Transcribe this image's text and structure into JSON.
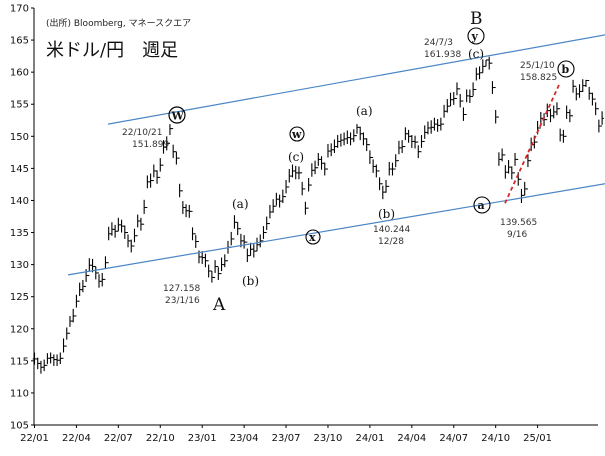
{
  "chart_data": {
    "type": "candlestick",
    "source": "(出所) Bloomberg, マネースクエア",
    "title": "米ドル/円　週足",
    "xlabel": "",
    "ylabel": "",
    "ylim": [
      105,
      170
    ],
    "ytick_labels": [
      "105",
      "110",
      "115",
      "120",
      "125",
      "130",
      "135",
      "140",
      "145",
      "150",
      "155",
      "160",
      "165",
      "170"
    ],
    "xtick_labels": [
      "22/01",
      "22/04",
      "22/07",
      "22/10",
      "23/01",
      "23/04",
      "23/07",
      "23/10",
      "24/01",
      "24/04",
      "24/07",
      "24/10",
      "25/01"
    ],
    "grid": false,
    "legend": "none",
    "colors": {
      "candles": "#000000",
      "channel": "#4a86c5",
      "trend": "#d62728",
      "axis": "#000000"
    },
    "series": [
      {
        "close": [
          115.3,
          114.6,
          114.0,
          114.3,
          115.4,
          115.5,
          115.2,
          115.1,
          115.4,
          117.3,
          119.3,
          121.2,
          122.0,
          124.3,
          126.1,
          126.6,
          128.3,
          129.9,
          129.7,
          128.7,
          127.4,
          127.7,
          130.3,
          134.8,
          135.5,
          135.2,
          136.2,
          136.0,
          135.0,
          133.7,
          132.9,
          134.5,
          136.8,
          136.3,
          138.9,
          142.9,
          143.1,
          144.6,
          143.6,
          145.5,
          148.3,
          148.9,
          151.2,
          147.6,
          146.6,
          141.5,
          138.9,
          138.4,
          138.3,
          134.8,
          133.6,
          131.2,
          131.1,
          130.6,
          129.0,
          128.0,
          129.7,
          128.6,
          130.0,
          130.6,
          132.7,
          134.0,
          136.6,
          135.6,
          133.7,
          133.5,
          131.4,
          132.4,
          132.1,
          133.1,
          133.7,
          135.0,
          136.4,
          138.2,
          139.1,
          140.2,
          139.9,
          140.6,
          142.1,
          143.8,
          144.6,
          144.3,
          144.3,
          141.8,
          138.8,
          142.4,
          144.7,
          145.1,
          146.4,
          145.8,
          144.9,
          147.7,
          147.9,
          148.4,
          149.2,
          149.4,
          149.6,
          149.8,
          149.6,
          150.1,
          151.4,
          150.4,
          149.6,
          148.7,
          146.7,
          145.3,
          144.6,
          142.6,
          141.3,
          142.2,
          144.9,
          144.9,
          146.2,
          148.2,
          148.4,
          150.4,
          150.0,
          149.2,
          149.1,
          147.6,
          149.2,
          150.6,
          151.3,
          151.4,
          151.9,
          151.7,
          151.9,
          153.9,
          154.7,
          155.7,
          155.9,
          157.4,
          155.5,
          153.4,
          156.3,
          156.2,
          157.3,
          159.7,
          159.9,
          160.9,
          161.9,
          161.4,
          157.6,
          153.0,
          146.4,
          147.1,
          144.4,
          145.2,
          144.3,
          146.4,
          143.3,
          140.8,
          141.8,
          146.2,
          148.7,
          149.1,
          151.3,
          152.8,
          152.6,
          154.0,
          153.2,
          153.8,
          154.3,
          150.2,
          150.0,
          153.7,
          153.2,
          157.8,
          156.6,
          157.0,
          157.9,
          158.7,
          156.7,
          155.8,
          154.3,
          151.6,
          152.8
        ],
        "high": [
          116.3,
          115.5,
          115.0,
          115.2,
          116.2,
          116.3,
          116.0,
          116.0,
          116.3,
          118.5,
          120.2,
          122.0,
          123.1,
          125.3,
          127.2,
          127.6,
          129.3,
          131.0,
          130.9,
          129.7,
          128.5,
          128.7,
          131.3,
          135.9,
          136.6,
          136.2,
          137.3,
          137.0,
          136.1,
          134.7,
          133.9,
          135.6,
          137.8,
          137.3,
          140.1,
          143.9,
          144.2,
          145.6,
          144.7,
          146.6,
          149.4,
          150.0,
          151.9,
          148.7,
          147.6,
          142.6,
          139.9,
          139.4,
          139.3,
          135.8,
          134.6,
          132.2,
          132.1,
          131.7,
          130.0,
          129.0,
          130.7,
          129.6,
          131.1,
          131.6,
          133.7,
          135.1,
          137.7,
          136.6,
          134.8,
          134.6,
          132.5,
          133.4,
          133.2,
          134.2,
          134.7,
          136.0,
          137.5,
          139.3,
          140.2,
          141.2,
          140.9,
          141.7,
          143.2,
          144.9,
          145.6,
          145.4,
          145.3,
          142.9,
          139.8,
          143.5,
          145.8,
          146.2,
          147.4,
          146.9,
          145.9,
          148.8,
          148.9,
          149.5,
          150.2,
          150.4,
          150.6,
          150.9,
          150.6,
          151.1,
          151.9,
          151.5,
          150.6,
          149.7,
          147.8,
          146.4,
          145.6,
          143.6,
          142.3,
          143.2,
          146.0,
          145.9,
          147.2,
          149.3,
          149.4,
          151.4,
          151.0,
          150.2,
          150.1,
          148.6,
          150.2,
          151.7,
          152.3,
          152.5,
          152.9,
          152.7,
          152.9,
          154.9,
          155.8,
          156.8,
          156.9,
          158.4,
          156.6,
          154.5,
          157.3,
          157.3,
          158.4,
          160.7,
          160.9,
          162.0,
          161.9,
          162.4,
          158.6,
          154.1,
          147.5,
          148.1,
          145.5,
          146.3,
          145.3,
          147.4,
          144.4,
          141.8,
          142.9,
          147.2,
          149.8,
          150.1,
          152.4,
          153.8,
          153.6,
          155.1,
          154.3,
          154.8,
          155.3,
          151.2,
          151.0,
          154.8,
          154.2,
          158.8,
          157.6,
          158.1,
          158.9,
          158.8,
          157.7,
          156.8,
          155.3,
          152.6,
          153.9
        ],
        "low": [
          114.4,
          113.7,
          113.0,
          113.4,
          114.5,
          114.6,
          114.2,
          114.2,
          114.5,
          116.3,
          118.3,
          120.3,
          121.0,
          123.3,
          125.1,
          125.7,
          127.3,
          128.9,
          128.8,
          127.7,
          126.4,
          126.6,
          129.3,
          133.8,
          134.5,
          134.2,
          135.2,
          135.0,
          134.0,
          132.7,
          131.9,
          133.5,
          135.8,
          135.3,
          137.9,
          141.9,
          142.0,
          143.6,
          142.6,
          144.5,
          147.3,
          147.8,
          150.2,
          146.6,
          145.6,
          140.5,
          137.9,
          137.4,
          137.3,
          133.8,
          132.6,
          130.2,
          130.1,
          129.6,
          128.0,
          127.2,
          128.7,
          127.6,
          129.0,
          129.6,
          131.7,
          133.0,
          135.6,
          134.6,
          132.7,
          132.5,
          130.4,
          131.4,
          131.1,
          132.1,
          132.7,
          134.0,
          135.4,
          137.2,
          138.1,
          139.2,
          138.9,
          139.6,
          141.1,
          142.8,
          143.6,
          143.3,
          143.3,
          140.8,
          137.8,
          141.4,
          143.7,
          144.1,
          145.4,
          144.8,
          143.9,
          146.7,
          146.9,
          147.4,
          148.2,
          148.4,
          148.6,
          148.8,
          148.6,
          149.1,
          150.4,
          149.4,
          148.6,
          147.7,
          145.7,
          144.3,
          143.6,
          141.6,
          140.2,
          141.2,
          143.9,
          143.9,
          145.2,
          147.2,
          147.4,
          149.4,
          149.0,
          148.2,
          148.1,
          146.6,
          148.2,
          149.6,
          150.3,
          150.4,
          150.9,
          150.7,
          150.9,
          152.9,
          153.7,
          154.7,
          154.9,
          156.4,
          154.5,
          152.4,
          155.3,
          155.2,
          156.3,
          158.7,
          158.9,
          159.9,
          160.9,
          160.4,
          156.6,
          152.0,
          145.4,
          146.1,
          143.4,
          144.2,
          143.3,
          145.4,
          142.3,
          139.6,
          140.8,
          145.2,
          147.7,
          148.1,
          150.3,
          151.8,
          151.6,
          153.0,
          152.2,
          152.8,
          153.3,
          149.2,
          149.0,
          152.7,
          152.2,
          156.8,
          155.6,
          156.0,
          156.9,
          157.7,
          155.7,
          154.8,
          153.3,
          150.6,
          151.8
        ]
      }
    ],
    "channel_upper": {
      "x": [
        22.8,
        180.4
      ],
      "y": [
        151.899,
        166.12
      ]
    },
    "channel_lower": {
      "x": [
        10.4,
        180.4
      ],
      "y": [
        128.4,
        142.9
      ]
    },
    "trend_dashed": {
      "x": [
        145.9,
        162.8
      ],
      "y": [
        139.565,
        158.2
      ]
    },
    "annotations": {
      "w_circle": "W",
      "w_date": "22/10/21",
      "w_price": "151.899",
      "a_low_date": "127.158",
      "a_low_date2": "23/1/16",
      "a_letter": "A",
      "b_paren": "(b)",
      "a_paren_1": "(a)",
      "x_circle": "x",
      "w_small_circle": "w",
      "c_paren_1": "(c)",
      "a_paren_2": "(a)",
      "b_paren_2": "(b)",
      "b2_price": "140.244",
      "b2_date": "12/28",
      "big_b": "B",
      "y_circle": "y",
      "c_paren_2": "(c)",
      "top_date": "24/7/3",
      "top_price": "161.938",
      "a_circle": "a",
      "low2_price": "139.565",
      "low2_date": "9/16",
      "b_circle": "b",
      "top2_date": "25/1/10",
      "top2_price": "158.825"
    }
  }
}
